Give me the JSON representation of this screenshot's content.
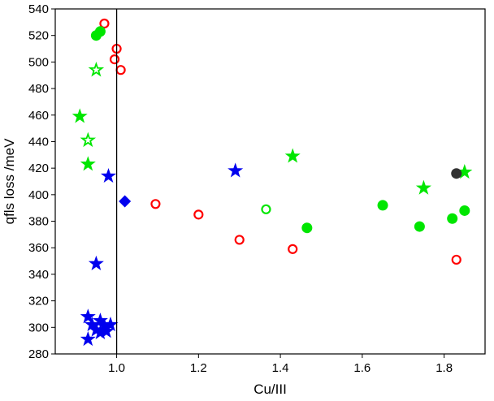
{
  "chart_data": {
    "type": "scatter",
    "title": "",
    "xlabel": "Cu/III",
    "ylabel": "qfls loss /meV",
    "xlim": [
      0.85,
      1.9
    ],
    "ylim": [
      280,
      540
    ],
    "xticks": [
      1.0,
      1.2,
      1.4,
      1.6,
      1.8
    ],
    "xtick_labels": [
      "1.0",
      "1.2",
      "1.4",
      "1.6",
      "1.8"
    ],
    "yticks": [
      280,
      300,
      320,
      340,
      360,
      380,
      400,
      420,
      440,
      460,
      480,
      500,
      520,
      540
    ],
    "ytick_labels": [
      "280",
      "300",
      "320",
      "340",
      "360",
      "380",
      "400",
      "420",
      "440",
      "460",
      "480",
      "500",
      "520",
      "540"
    ],
    "vertical_line_x": 1.0,
    "grid": false,
    "legend": "none",
    "series": [
      {
        "marker": "open-circle",
        "color": "#ff0000",
        "points": [
          {
            "x": 0.97,
            "y": 529
          },
          {
            "x": 1.0,
            "y": 510
          },
          {
            "x": 0.995,
            "y": 502
          },
          {
            "x": 1.01,
            "y": 494
          },
          {
            "x": 1.095,
            "y": 393
          },
          {
            "x": 1.2,
            "y": 385
          },
          {
            "x": 1.3,
            "y": 366
          },
          {
            "x": 1.43,
            "y": 359
          },
          {
            "x": 1.83,
            "y": 351
          }
        ]
      },
      {
        "marker": "filled-circle",
        "color": "#00e600",
        "points": [
          {
            "x": 0.95,
            "y": 520
          },
          {
            "x": 0.96,
            "y": 523
          },
          {
            "x": 1.465,
            "y": 375
          },
          {
            "x": 1.65,
            "y": 392
          },
          {
            "x": 1.74,
            "y": 376
          },
          {
            "x": 1.82,
            "y": 382
          },
          {
            "x": 1.85,
            "y": 388
          }
        ]
      },
      {
        "marker": "open-circle",
        "color": "#00e600",
        "points": [
          {
            "x": 1.365,
            "y": 389
          }
        ]
      },
      {
        "marker": "filled-star",
        "color": "#00e600",
        "points": [
          {
            "x": 0.91,
            "y": 459
          },
          {
            "x": 0.93,
            "y": 423
          },
          {
            "x": 1.43,
            "y": 429
          },
          {
            "x": 1.75,
            "y": 405
          },
          {
            "x": 1.85,
            "y": 417
          }
        ]
      },
      {
        "marker": "open-star",
        "color": "#00e600",
        "points": [
          {
            "x": 0.95,
            "y": 494
          },
          {
            "x": 0.93,
            "y": 441
          }
        ]
      },
      {
        "marker": "filled-star",
        "color": "#0000ee",
        "points": [
          {
            "x": 0.98,
            "y": 414
          },
          {
            "x": 0.95,
            "y": 348
          },
          {
            "x": 1.29,
            "y": 418
          },
          {
            "x": 0.93,
            "y": 308
          },
          {
            "x": 0.94,
            "y": 302
          },
          {
            "x": 0.96,
            "y": 305
          },
          {
            "x": 0.95,
            "y": 298
          },
          {
            "x": 0.97,
            "y": 301
          },
          {
            "x": 0.975,
            "y": 297
          },
          {
            "x": 0.985,
            "y": 302
          },
          {
            "x": 0.96,
            "y": 296
          },
          {
            "x": 0.93,
            "y": 291
          }
        ]
      },
      {
        "marker": "filled-diamond",
        "color": "#0000ee",
        "points": [
          {
            "x": 1.02,
            "y": 395
          }
        ]
      },
      {
        "marker": "filled-circle",
        "color": "#333333",
        "points": [
          {
            "x": 1.83,
            "y": 416
          }
        ]
      }
    ]
  }
}
